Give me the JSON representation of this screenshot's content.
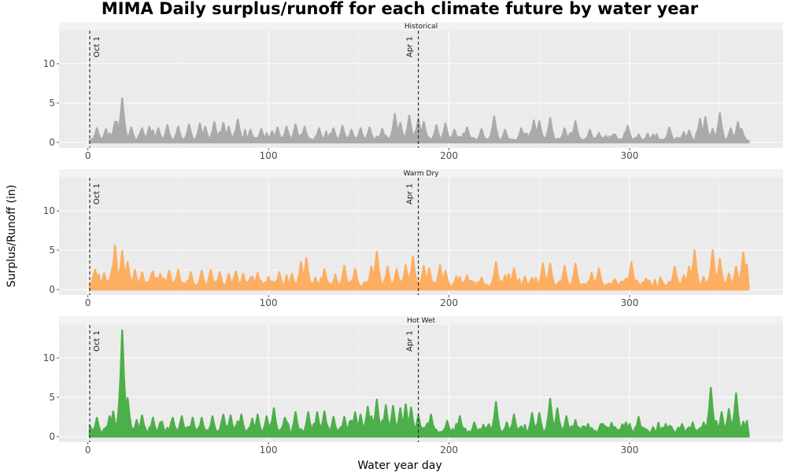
{
  "chart_data": {
    "type": "area",
    "title": "MIMA Daily surplus/runoff for each climate future by water year",
    "xlabel": "Water year day",
    "ylabel": "Surplus/Runoff (in)",
    "xlim": [
      -16,
      385
    ],
    "ylim": [
      -0.7,
      14.2
    ],
    "x_ticks": [
      0,
      100,
      200,
      300
    ],
    "y_ticks": [
      0,
      5,
      10
    ],
    "reference_lines": [
      {
        "x": 1,
        "label": "Oct 1"
      },
      {
        "x": 183,
        "label": "Apr 1"
      }
    ],
    "x_range": [
      1,
      366
    ],
    "panels": [
      {
        "name": "Historical",
        "color": "#aaaaaa",
        "baseline": 0.5,
        "peaks": [
          [
            5,
            1.8
          ],
          [
            10,
            1.7
          ],
          [
            15,
            2.6
          ],
          [
            16,
            2.6
          ],
          [
            19,
            5.6
          ],
          [
            24,
            1.9
          ],
          [
            30,
            1.8
          ],
          [
            34,
            2.0
          ],
          [
            39,
            1.8
          ],
          [
            44,
            2.2
          ],
          [
            50,
            2.0
          ],
          [
            56,
            2.3
          ],
          [
            62,
            2.4
          ],
          [
            65,
            2.0
          ],
          [
            70,
            2.6
          ],
          [
            75,
            2.5
          ],
          [
            78,
            2.0
          ],
          [
            83,
            2.9
          ],
          [
            90,
            1.6
          ],
          [
            96,
            1.7
          ],
          [
            102,
            1.4
          ],
          [
            105,
            1.9
          ],
          [
            110,
            2.0
          ],
          [
            115,
            2.3
          ],
          [
            120,
            2.0
          ],
          [
            128,
            1.8
          ],
          [
            136,
            1.8
          ],
          [
            141,
            2.1
          ],
          [
            146,
            1.6
          ],
          [
            151,
            1.8
          ],
          [
            156,
            1.9
          ],
          [
            163,
            1.7
          ],
          [
            170,
            3.6
          ],
          [
            173,
            2.5
          ],
          [
            178,
            3.4
          ],
          [
            183,
            3.0
          ],
          [
            186,
            2.6
          ],
          [
            193,
            2.2
          ],
          [
            198,
            2.4
          ],
          [
            203,
            1.6
          ],
          [
            210,
            1.9
          ],
          [
            218,
            1.7
          ],
          [
            225,
            3.3
          ],
          [
            231,
            1.6
          ],
          [
            240,
            1.8
          ],
          [
            247,
            2.8
          ],
          [
            250,
            2.7
          ],
          [
            256,
            3.1
          ],
          [
            264,
            1.8
          ],
          [
            270,
            2.7
          ],
          [
            278,
            1.6
          ],
          [
            283,
            1.2
          ],
          [
            292,
            1.0
          ],
          [
            299,
            2.1
          ],
          [
            305,
            1.0
          ],
          [
            313,
            1.0
          ],
          [
            322,
            1.9
          ],
          [
            330,
            1.3
          ],
          [
            333,
            1.5
          ],
          [
            339,
            3.0
          ],
          [
            342,
            3.2
          ],
          [
            346,
            1.7
          ],
          [
            350,
            3.7
          ],
          [
            356,
            1.8
          ],
          [
            360,
            2.6
          ],
          [
            362,
            1.7
          ]
        ]
      },
      {
        "name": "Warm Dry",
        "color": "#fdae61",
        "baseline": 0.9,
        "peaks": [
          [
            4,
            2.5
          ],
          [
            9,
            2.1
          ],
          [
            13,
            2.2
          ],
          [
            15,
            5.6
          ],
          [
            19,
            4.9
          ],
          [
            22,
            3.5
          ],
          [
            26,
            2.5
          ],
          [
            30,
            2.2
          ],
          [
            36,
            2.3
          ],
          [
            40,
            2.0
          ],
          [
            45,
            2.4
          ],
          [
            50,
            2.5
          ],
          [
            57,
            2.2
          ],
          [
            63,
            2.4
          ],
          [
            68,
            2.5
          ],
          [
            73,
            2.2
          ],
          [
            78,
            2.0
          ],
          [
            82,
            2.3
          ],
          [
            86,
            2.0
          ],
          [
            94,
            2.1
          ],
          [
            100,
            1.6
          ],
          [
            106,
            2.2
          ],
          [
            113,
            2.0
          ],
          [
            118,
            3.5
          ],
          [
            121,
            4.0
          ],
          [
            126,
            1.5
          ],
          [
            131,
            2.6
          ],
          [
            137,
            1.9
          ],
          [
            142,
            3.0
          ],
          [
            148,
            2.6
          ],
          [
            157,
            2.9
          ],
          [
            160,
            4.8
          ],
          [
            166,
            2.9
          ],
          [
            171,
            2.6
          ],
          [
            176,
            3.1
          ],
          [
            180,
            4.2
          ],
          [
            186,
            3.0
          ],
          [
            189,
            2.7
          ],
          [
            195,
            3.1
          ],
          [
            198,
            2.4
          ],
          [
            206,
            1.6
          ],
          [
            210,
            1.8
          ],
          [
            218,
            1.5
          ],
          [
            226,
            3.5
          ],
          [
            231,
            1.8
          ],
          [
            236,
            2.7
          ],
          [
            242,
            1.2
          ],
          [
            248,
            1.5
          ],
          [
            252,
            3.3
          ],
          [
            256,
            3.3
          ],
          [
            264,
            3.0
          ],
          [
            270,
            3.3
          ],
          [
            279,
            2.1
          ],
          [
            283,
            2.7
          ],
          [
            292,
            1.3
          ],
          [
            298,
            1.4
          ],
          [
            301,
            3.5
          ],
          [
            309,
            1.4
          ],
          [
            318,
            1.1
          ],
          [
            325,
            2.9
          ],
          [
            330,
            1.8
          ],
          [
            333,
            2.9
          ],
          [
            336,
            5.0
          ],
          [
            341,
            1.6
          ],
          [
            346,
            5.0
          ],
          [
            350,
            3.9
          ],
          [
            355,
            2.0
          ],
          [
            359,
            2.9
          ],
          [
            363,
            4.7
          ],
          [
            365,
            3.2
          ]
        ]
      },
      {
        "name": "Hot Wet",
        "color": "#4daf4a",
        "baseline": 1.0,
        "peaks": [
          [
            5,
            2.4
          ],
          [
            12,
            2.6
          ],
          [
            14,
            3.2
          ],
          [
            19,
            13.5
          ],
          [
            21,
            2.0
          ],
          [
            22,
            4.9
          ],
          [
            27,
            2.1
          ],
          [
            30,
            2.7
          ],
          [
            36,
            2.4
          ],
          [
            41,
            1.9
          ],
          [
            47,
            2.4
          ],
          [
            52,
            2.6
          ],
          [
            58,
            2.4
          ],
          [
            63,
            2.4
          ],
          [
            69,
            2.6
          ],
          [
            75,
            2.8
          ],
          [
            79,
            2.7
          ],
          [
            85,
            2.8
          ],
          [
            91,
            2.3
          ],
          [
            94,
            2.8
          ],
          [
            99,
            2.6
          ],
          [
            103,
            3.6
          ],
          [
            109,
            2.4
          ],
          [
            115,
            3.1
          ],
          [
            122,
            3.1
          ],
          [
            127,
            3.1
          ],
          [
            131,
            3.2
          ],
          [
            136,
            2.5
          ],
          [
            142,
            2.5
          ],
          [
            148,
            3.1
          ],
          [
            151,
            2.8
          ],
          [
            155,
            3.8
          ],
          [
            157,
            2.6
          ],
          [
            160,
            4.7
          ],
          [
            165,
            4.0
          ],
          [
            169,
            3.9
          ],
          [
            173,
            3.6
          ],
          [
            176,
            4.1
          ],
          [
            179,
            3.7
          ],
          [
            183,
            2.7
          ],
          [
            190,
            2.8
          ],
          [
            199,
            2.0
          ],
          [
            206,
            2.6
          ],
          [
            214,
            1.8
          ],
          [
            219,
            1.5
          ],
          [
            226,
            4.4
          ],
          [
            232,
            1.8
          ],
          [
            236,
            2.8
          ],
          [
            240,
            1.3
          ],
          [
            246,
            3.0
          ],
          [
            250,
            3.0
          ],
          [
            256,
            4.8
          ],
          [
            260,
            3.6
          ],
          [
            265,
            2.6
          ],
          [
            270,
            2.1
          ],
          [
            277,
            1.6
          ],
          [
            285,
            1.6
          ],
          [
            292,
            1.2
          ],
          [
            300,
            1.6
          ],
          [
            305,
            2.5
          ],
          [
            313,
            1.2
          ],
          [
            320,
            1.6
          ],
          [
            329,
            1.6
          ],
          [
            335,
            1.8
          ],
          [
            341,
            1.8
          ],
          [
            345,
            6.2
          ],
          [
            351,
            3.1
          ],
          [
            355,
            3.5
          ],
          [
            359,
            5.5
          ],
          [
            363,
            1.9
          ],
          [
            365,
            2.0
          ]
        ]
      }
    ]
  }
}
